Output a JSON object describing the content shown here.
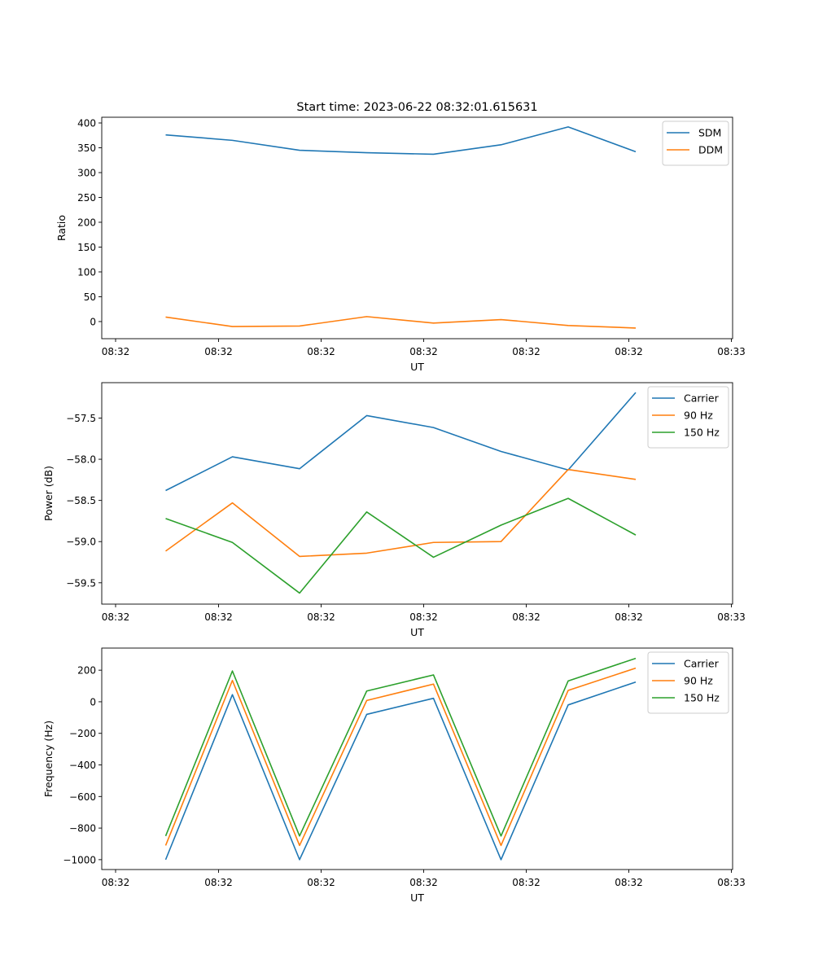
{
  "figure_title": "Start time: 2023-06-22 08:32:01.615631",
  "chart_data": [
    {
      "type": "line",
      "title": "Start time: 2023-06-22 08:32:01.615631",
      "xlabel": "UT",
      "ylabel": "Ratio",
      "x_ticks": [
        "08:32",
        "08:32",
        "08:32",
        "08:32",
        "08:32",
        "08:32",
        "08:33"
      ],
      "y_ticks": [
        0,
        50,
        100,
        150,
        200,
        250,
        300,
        350,
        400
      ],
      "ylim": [
        -34.5,
        411.5
      ],
      "legend": "top-right",
      "series": [
        {
          "name": "SDM",
          "color": "#1f77b4",
          "values": [
            376,
            365,
            345,
            340,
            337,
            356,
            392,
            342
          ]
        },
        {
          "name": "DDM",
          "color": "#ff7f0e",
          "values": [
            9,
            -10,
            -9,
            10,
            -3,
            4,
            -8,
            -13
          ]
        }
      ]
    },
    {
      "type": "line",
      "title": "",
      "xlabel": "UT",
      "ylabel": "Power (dB)",
      "x_ticks": [
        "08:32",
        "08:32",
        "08:32",
        "08:32",
        "08:32",
        "08:32",
        "08:33"
      ],
      "y_ticks": [
        -59.5,
        -59.0,
        -58.5,
        -58.0,
        -57.5
      ],
      "y_tick_labels": [
        "−59.5",
        "−59.0",
        "−58.5",
        "−58.0",
        "−57.5"
      ],
      "ylim": [
        -59.759,
        -57.07
      ],
      "legend": "top-right",
      "series": [
        {
          "name": "Carrier",
          "color": "#1f77b4",
          "values": [
            -58.38,
            -57.97,
            -58.115,
            -57.47,
            -57.615,
            -57.905,
            -58.13,
            -57.19
          ]
        },
        {
          "name": "90 Hz",
          "color": "#ff7f0e",
          "values": [
            -59.115,
            -58.53,
            -59.18,
            -59.14,
            -59.01,
            -59.0,
            -58.125,
            -58.245
          ]
        },
        {
          "name": "150 Hz",
          "color": "#2ca02c",
          "values": [
            -58.72,
            -59.01,
            -59.625,
            -58.64,
            -59.19,
            -58.8,
            -58.475,
            -58.92
          ]
        }
      ]
    },
    {
      "type": "line",
      "title": "",
      "xlabel": "UT",
      "ylabel": "Frequency (Hz)",
      "x_ticks": [
        "08:32",
        "08:32",
        "08:32",
        "08:32",
        "08:32",
        "08:32",
        "08:33"
      ],
      "y_ticks": [
        -1000,
        -800,
        -600,
        -400,
        -200,
        0,
        200
      ],
      "y_tick_labels": [
        "−1000",
        "−800",
        "−600",
        "−400",
        "−200",
        "0",
        "200"
      ],
      "ylim": [
        -1062.5,
        340
      ],
      "legend": "top-right",
      "series": [
        {
          "name": "Carrier",
          "color": "#1f77b4",
          "values": [
            -1000,
            45,
            -1000,
            -80,
            22,
            -1000,
            -20,
            125
          ]
        },
        {
          "name": "90 Hz",
          "color": "#ff7f0e",
          "values": [
            -910,
            135,
            -910,
            8,
            112,
            -910,
            72,
            213
          ]
        },
        {
          "name": "150 Hz",
          "color": "#2ca02c",
          "values": [
            -850,
            195,
            -850,
            68,
            170,
            -850,
            132,
            275
          ]
        }
      ]
    }
  ]
}
